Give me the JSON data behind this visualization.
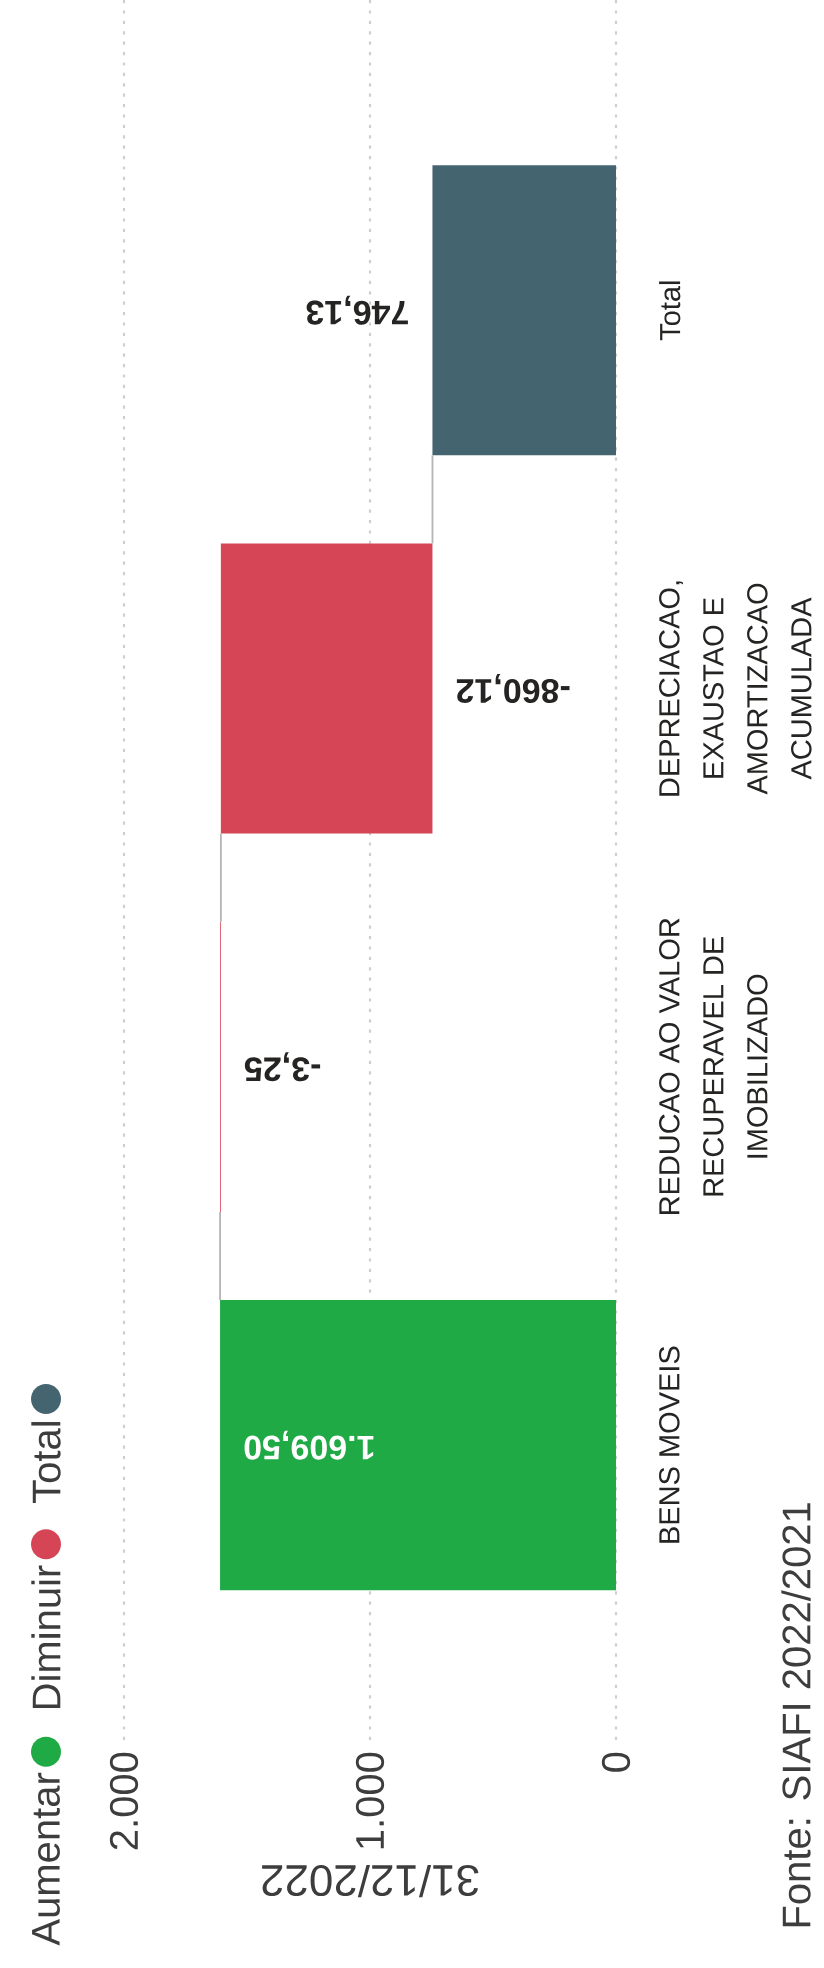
{
  "chart_data": {
    "type": "bar",
    "orientation": "horizontal",
    "categories": [
      "Total",
      "DEPRECIACAO, EXAUSTAO E AMORTIZACAO ACUMULADA",
      "REDUCAO AO VALOR RECUPERAVEL DE IMOBILIZADO",
      "BENS MOVEIS"
    ],
    "series": [
      {
        "name": "Aumentar",
        "color": "#1faa45",
        "values": [
          null,
          null,
          null,
          1609.5
        ],
        "base": [
          null,
          null,
          null,
          0
        ],
        "value_labels": [
          null,
          null,
          null,
          "1.609,50"
        ]
      },
      {
        "name": "Diminuir",
        "color": "#d64556",
        "values": [
          null,
          -860.12,
          -3.25,
          null
        ],
        "base": [
          null,
          1606.25,
          1609.5,
          null
        ],
        "value_labels": [
          null,
          "-860,12",
          "-3,25",
          null
        ]
      },
      {
        "name": "Total",
        "color": "#446570",
        "values": [
          746.13,
          null,
          null,
          null
        ],
        "base": [
          0,
          null,
          null,
          null
        ],
        "value_labels": [
          "746,13",
          null,
          null,
          null
        ]
      }
    ],
    "xlabel": "31/12/2022",
    "xlim": [
      2000,
      0
    ],
    "xticks": [
      0,
      {
        "value": 1000,
        "label": "1.000"
      },
      {
        "value": 2000,
        "label": "2.000"
      }
    ],
    "grid": "x",
    "legend": "left",
    "annotations": [
      "Fonte: SIAFI 2022/2021"
    ]
  }
}
